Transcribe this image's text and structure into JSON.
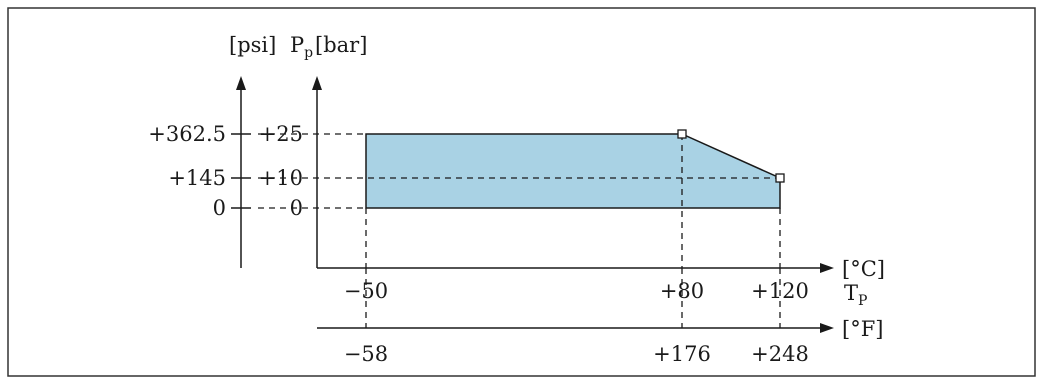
{
  "diagram": {
    "pressure_axis": {
      "psi_unit": "[psi]",
      "symbol_main": "P",
      "symbol_sub": "p",
      "bar_unit": "[bar]",
      "psi_ticks": [
        "+362.5",
        "+145",
        "0"
      ],
      "bar_ticks": [
        "+25",
        "+10",
        "0"
      ],
      "bar_values": [
        25,
        10,
        0
      ]
    },
    "temperature_axis": {
      "celsius_unit": "[°C]",
      "symbol_main": "T",
      "symbol_sub": "P",
      "celsius_ticks": [
        "−50",
        "+80",
        "+120"
      ],
      "celsius_values": [
        -50,
        80,
        120
      ],
      "fahrenheit_unit": "[°F]",
      "fahrenheit_ticks": [
        "−58",
        "+176",
        "+248"
      ]
    },
    "operating_region": {
      "fill_color": "#a9d2e4",
      "corners_celsius_bar": [
        [
          -50,
          0
        ],
        [
          -50,
          25
        ],
        [
          80,
          25
        ],
        [
          120,
          10
        ],
        [
          120,
          0
        ]
      ]
    }
  }
}
